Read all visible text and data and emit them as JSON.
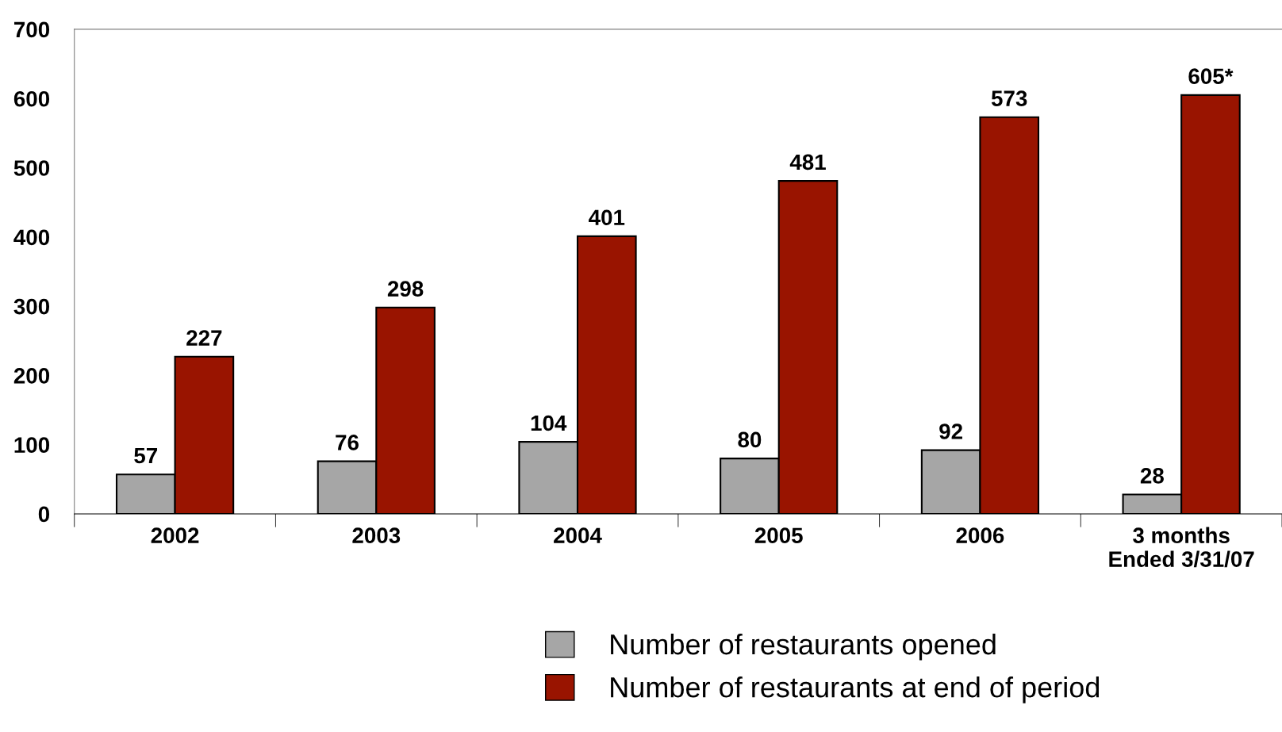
{
  "chart_data": {
    "type": "bar",
    "categories": [
      "2002",
      "2003",
      "2004",
      "2005",
      "2006",
      "3 months\nEnded 3/31/07"
    ],
    "series": [
      {
        "name": "Number of restaurants opened",
        "color": "#a6a6a6",
        "values": [
          57,
          76,
          104,
          80,
          92,
          28
        ],
        "value_labels": [
          "57",
          "76",
          "104",
          "80",
          "92",
          "28"
        ]
      },
      {
        "name": "Number of restaurants at end of period",
        "color": "#991400",
        "values": [
          227,
          298,
          401,
          481,
          573,
          605
        ],
        "value_labels": [
          "227",
          "298",
          "401",
          "481",
          "573",
          "605*"
        ]
      }
    ],
    "ylim": [
      0,
      700
    ],
    "yticks": [
      0,
      100,
      200,
      300,
      400,
      500,
      600,
      700
    ],
    "grid": false,
    "legend": "bottom"
  }
}
